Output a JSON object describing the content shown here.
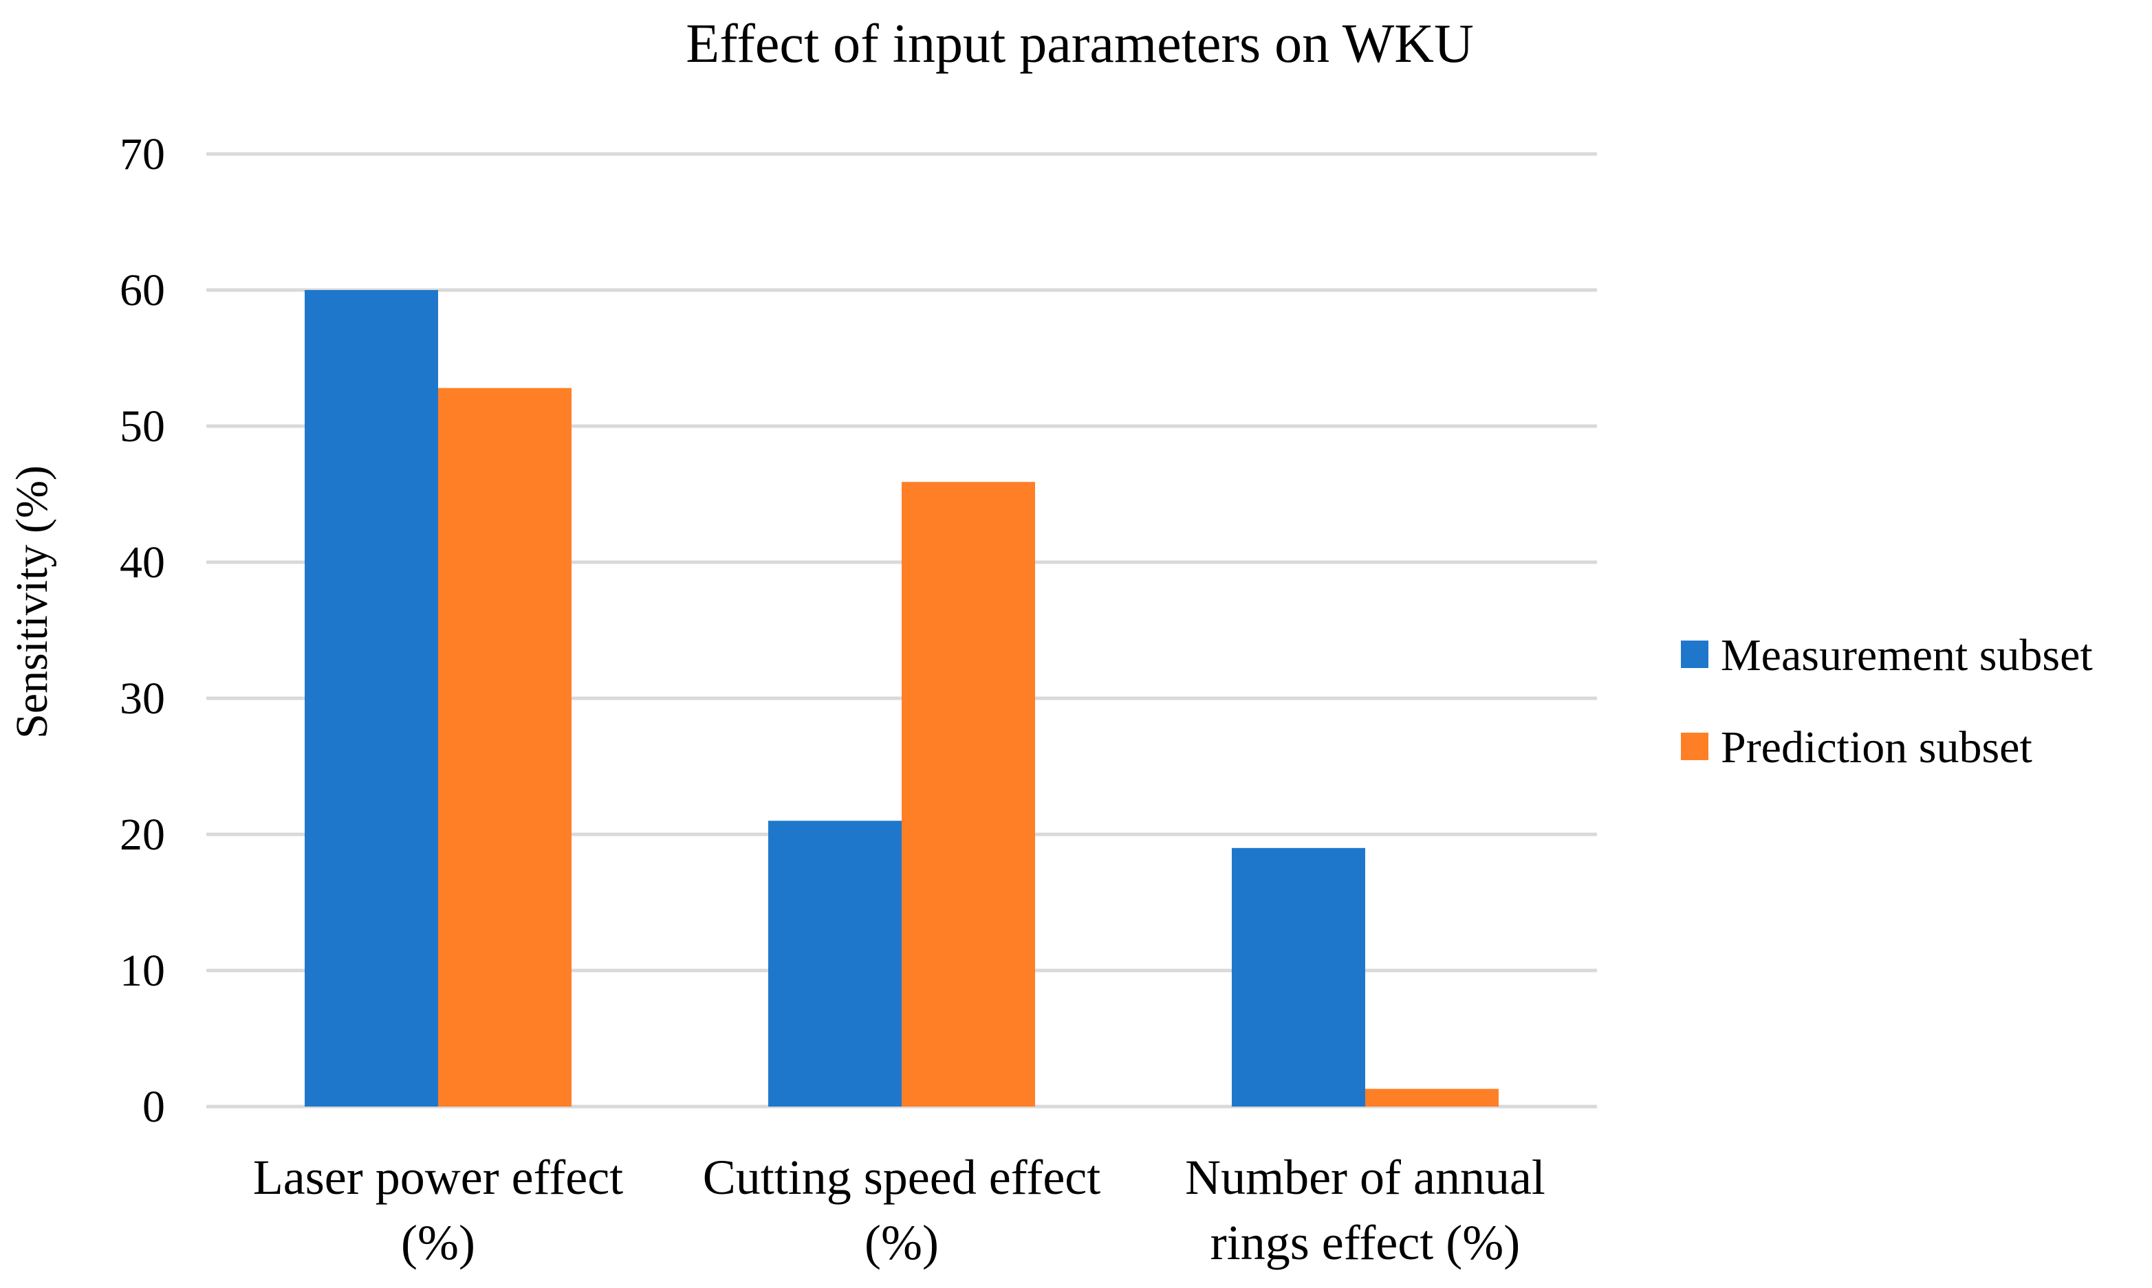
{
  "chart_data": {
    "type": "bar",
    "title": "Effect of input parameters on WKU",
    "xlabel": "",
    "ylabel": "Sensitivity (%)",
    "ylim": [
      0,
      70
    ],
    "yticks": [
      0,
      10,
      20,
      30,
      40,
      50,
      60,
      70
    ],
    "grid": true,
    "legend_position": "right",
    "categories": [
      [
        "Laser power effect",
        "(%)"
      ],
      [
        "Cutting speed effect",
        "(%)"
      ],
      [
        "Number of annual",
        "rings effect (%)"
      ]
    ],
    "series": [
      {
        "name": "Measurement subset",
        "color": "#1F77CB",
        "values": [
          60,
          21,
          19
        ]
      },
      {
        "name": "Prediction subset",
        "color": "#FF7F27",
        "values": [
          52.8,
          45.9,
          1.3
        ]
      }
    ]
  },
  "colors": {
    "grid": "#D9D9D9",
    "text": "#000000",
    "background": "#FFFFFF"
  }
}
